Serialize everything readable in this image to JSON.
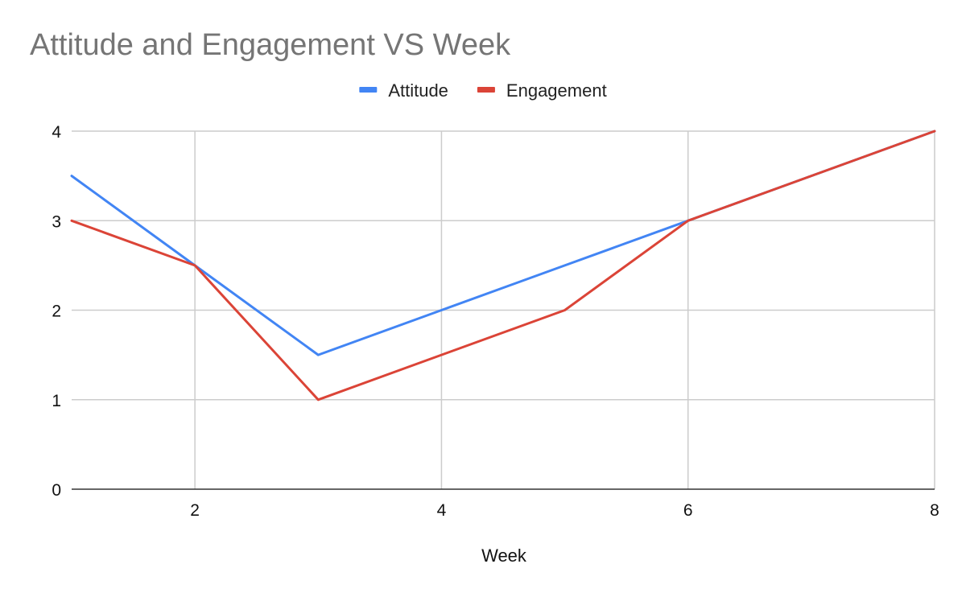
{
  "chart_data": {
    "type": "line",
    "title": "Attitude and Engagement VS Week",
    "xlabel": "Week",
    "ylabel": "",
    "x": [
      1,
      2,
      3,
      4,
      5,
      6,
      7,
      8
    ],
    "xlim": [
      1,
      8
    ],
    "ylim": [
      0,
      4
    ],
    "x_ticks": [
      2,
      4,
      6,
      8
    ],
    "y_ticks": [
      0,
      1,
      2,
      3,
      4
    ],
    "grid": true,
    "legend_position": "top-center",
    "series": [
      {
        "name": "Attitude",
        "color": "#4285f4",
        "values": [
          3.5,
          2.5,
          1.5,
          2,
          2.5,
          3,
          3.5,
          4
        ]
      },
      {
        "name": "Engagement",
        "color": "#db4437",
        "values": [
          3,
          2.5,
          1,
          1.5,
          2,
          3,
          3.5,
          4
        ]
      }
    ]
  }
}
